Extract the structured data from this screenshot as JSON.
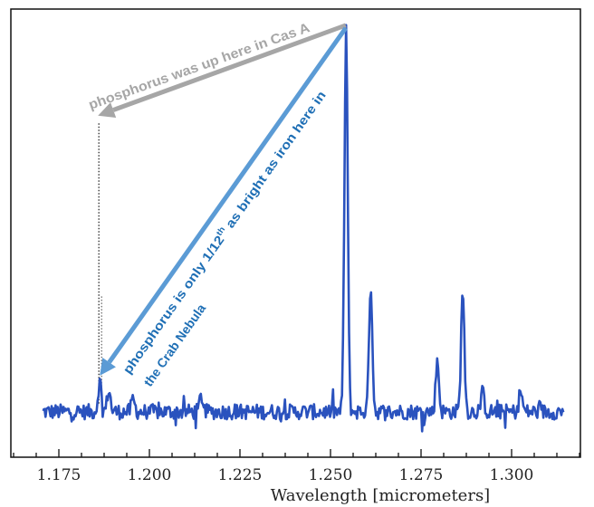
{
  "chart_data": {
    "type": "line",
    "title": "",
    "xlabel": "Wavelength [micrometers]",
    "ylabel": "",
    "xlim": [
      1.16175,
      1.319
    ],
    "ylim": [
      -0.118,
      1.047
    ],
    "x_ticks": [
      "1.175",
      "1.200",
      "1.225",
      "1.250",
      "1.275",
      "1.300"
    ],
    "x_tick_values": [
      1.175,
      1.2,
      1.225,
      1.25,
      1.275,
      1.3
    ],
    "y_ticks_shown": false,
    "grid": false,
    "line_color": "#2a52be",
    "spectrum_range": [
      1.1705,
      1.3143
    ],
    "baseline": 0,
    "noise_amplitude": 0.02,
    "emission_lines": [
      {
        "x": 1.1863,
        "height": 0.078
      },
      {
        "x": 1.1888,
        "height": 0.058
      },
      {
        "x": 1.1955,
        "height": 0.032
      },
      {
        "x": 1.2143,
        "height": 0.042
      },
      {
        "x": 1.2543,
        "height": 1.0
      },
      {
        "x": 1.2611,
        "height": 0.334
      },
      {
        "x": 1.2795,
        "height": 0.134
      },
      {
        "x": 1.2865,
        "height": 0.318
      },
      {
        "x": 1.292,
        "height": 0.05
      },
      {
        "x": 1.3025,
        "height": 0.055
      }
    ],
    "annotations": [
      {
        "text": "phosphorus was up here in Cas A",
        "color": "#a6a6a6",
        "arrow_from_x": 1.2542,
        "arrow_to_x": 1.1858,
        "arrow_to_y": 0.77
      },
      {
        "text_line1_a": "phosphorus is only 1/12",
        "text_line1_sup": "th",
        "text_line1_b": " as bright as iron here in",
        "text_line2": "the Crab Nebula",
        "color": "#1f6fb5",
        "arrow_color": "#5b9bd5",
        "arrow_from_x": 1.2542,
        "arrow_to_x": 1.1863,
        "arrow_to_y": 0.094
      }
    ],
    "reference_line": {
      "x": 1.1863,
      "style": "dotted",
      "top_y": 0.75
    }
  }
}
